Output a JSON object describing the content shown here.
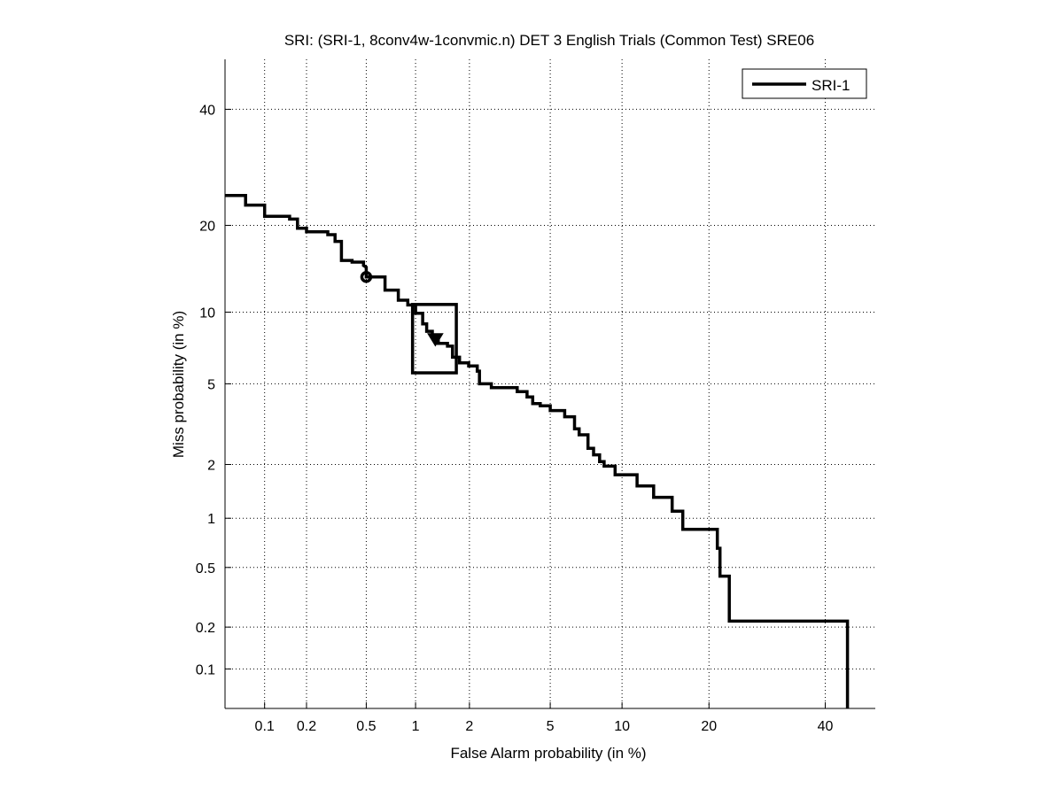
{
  "chart_data": {
    "type": "line",
    "scale": "normal-deviate (probit)",
    "title": "SRI: (SRI-1, 8conv4w-1convmic.n) DET 3 English Trials (Common Test) SRE06",
    "xlabel": "False Alarm probability (in %)",
    "ylabel": "Miss probability (in %)",
    "xlim": [
      0.05,
      50
    ],
    "ylim": [
      0.05,
      50
    ],
    "grid": true,
    "legend_position": "top-right",
    "xticks": [
      0.1,
      0.2,
      0.5,
      1,
      2,
      5,
      10,
      20,
      40
    ],
    "xtick_labels": [
      "0.1",
      "0.2",
      "0.5",
      "1",
      "2",
      "5",
      "10",
      "20",
      "40"
    ],
    "yticks": [
      0.1,
      0.2,
      0.5,
      1,
      2,
      5,
      10,
      20,
      40
    ],
    "ytick_labels": [
      "0.1",
      "0.2",
      "0.5",
      "1",
      "2",
      "5",
      "10",
      "20",
      "40"
    ],
    "series": [
      {
        "name": "SRI-1",
        "color": "#000000",
        "points": [
          [
            0.05,
            24.5
          ],
          [
            0.072,
            24.5
          ],
          [
            0.072,
            23.0
          ],
          [
            0.1,
            23.0
          ],
          [
            0.1,
            21.3
          ],
          [
            0.152,
            21.3
          ],
          [
            0.152,
            20.9
          ],
          [
            0.173,
            20.9
          ],
          [
            0.173,
            19.6
          ],
          [
            0.2,
            19.6
          ],
          [
            0.2,
            19.1
          ],
          [
            0.28,
            19.1
          ],
          [
            0.28,
            18.7
          ],
          [
            0.313,
            18.7
          ],
          [
            0.313,
            17.8
          ],
          [
            0.345,
            17.8
          ],
          [
            0.345,
            15.4
          ],
          [
            0.405,
            15.4
          ],
          [
            0.405,
            15.2
          ],
          [
            0.48,
            15.2
          ],
          [
            0.48,
            14.8
          ],
          [
            0.5,
            14.6
          ],
          [
            0.5,
            13.5
          ],
          [
            0.655,
            13.5
          ],
          [
            0.655,
            12.1
          ],
          [
            0.79,
            12.1
          ],
          [
            0.79,
            11.1
          ],
          [
            0.9,
            11.1
          ],
          [
            0.9,
            10.65
          ],
          [
            1.0,
            10.65
          ],
          [
            1.0,
            9.9
          ],
          [
            1.1,
            9.9
          ],
          [
            1.1,
            9.0
          ],
          [
            1.16,
            9.0
          ],
          [
            1.16,
            8.4
          ],
          [
            1.25,
            8.4
          ],
          [
            1.25,
            8.1
          ],
          [
            1.35,
            8.1
          ],
          [
            1.35,
            7.5
          ],
          [
            1.52,
            7.5
          ],
          [
            1.52,
            7.3
          ],
          [
            1.62,
            7.3
          ],
          [
            1.62,
            6.55
          ],
          [
            1.77,
            6.55
          ],
          [
            1.77,
            6.2
          ],
          [
            1.98,
            6.2
          ],
          [
            1.98,
            6.0
          ],
          [
            2.2,
            6.0
          ],
          [
            2.2,
            5.7
          ],
          [
            2.26,
            5.7
          ],
          [
            2.26,
            5.0
          ],
          [
            2.6,
            5.0
          ],
          [
            2.6,
            4.8
          ],
          [
            3.5,
            4.8
          ],
          [
            3.5,
            4.6
          ],
          [
            3.9,
            4.6
          ],
          [
            3.9,
            4.35
          ],
          [
            4.15,
            4.35
          ],
          [
            4.15,
            4.05
          ],
          [
            4.5,
            4.05
          ],
          [
            4.5,
            3.95
          ],
          [
            5.0,
            3.95
          ],
          [
            5.0,
            3.75
          ],
          [
            5.8,
            3.75
          ],
          [
            5.8,
            3.5
          ],
          [
            6.4,
            3.5
          ],
          [
            6.4,
            3.05
          ],
          [
            6.7,
            3.05
          ],
          [
            6.7,
            2.85
          ],
          [
            7.3,
            2.85
          ],
          [
            7.3,
            2.43
          ],
          [
            7.7,
            2.43
          ],
          [
            7.7,
            2.25
          ],
          [
            8.15,
            2.25
          ],
          [
            8.15,
            2.07
          ],
          [
            8.5,
            2.07
          ],
          [
            8.5,
            1.96
          ],
          [
            9.4,
            1.96
          ],
          [
            9.4,
            1.76
          ],
          [
            11.4,
            1.76
          ],
          [
            11.4,
            1.53
          ],
          [
            13.1,
            1.53
          ],
          [
            13.1,
            1.32
          ],
          [
            15.2,
            1.32
          ],
          [
            15.2,
            1.1
          ],
          [
            16.5,
            1.1
          ],
          [
            16.5,
            0.86
          ],
          [
            21.2,
            0.86
          ],
          [
            21.2,
            0.66
          ],
          [
            21.6,
            0.66
          ],
          [
            21.6,
            0.44
          ],
          [
            23.0,
            0.44
          ],
          [
            23.0,
            0.22
          ],
          [
            44.4,
            0.22
          ],
          [
            44.4,
            0.05
          ]
        ]
      }
    ],
    "markers": [
      {
        "name": "circle-marker",
        "shape": "circle",
        "fa": 0.5,
        "miss": 13.5
      },
      {
        "name": "triangle-marker",
        "shape": "triangle-down",
        "fa": 1.3,
        "miss": 7.8
      }
    ],
    "confidence_box": {
      "fa_min": 0.96,
      "fa_max": 1.7,
      "miss_min": 5.6,
      "miss_max": 10.7
    }
  }
}
